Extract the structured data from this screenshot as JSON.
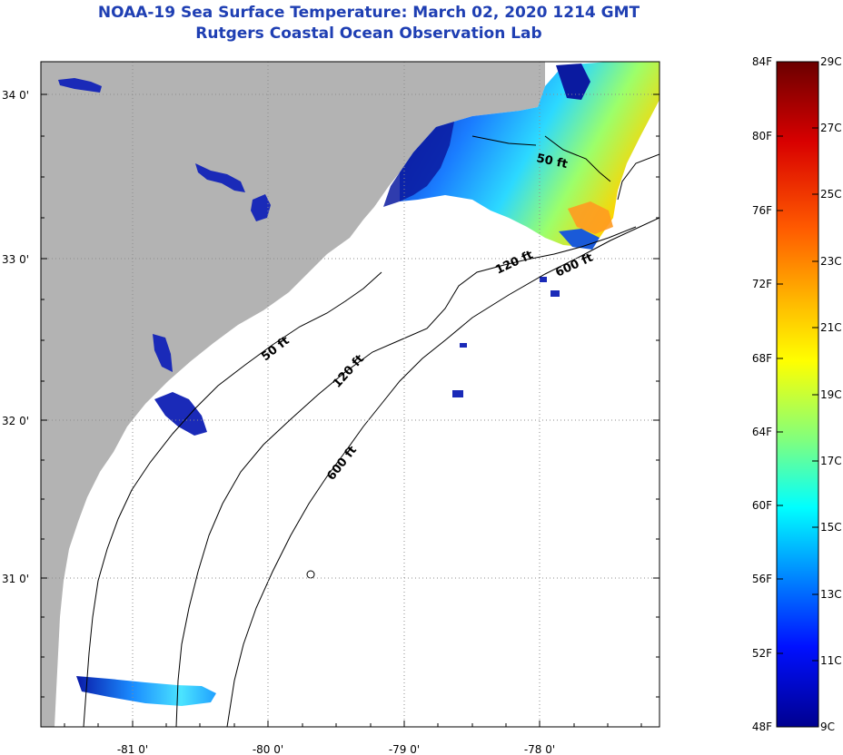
{
  "title": {
    "line1": "NOAA-19 Sea Surface Temperature:  March 02, 2020 1214 GMT",
    "line2": "Rutgers Coastal Ocean Observation Lab"
  },
  "map": {
    "lat_labels": [
      "34 0'",
      "33 0'",
      "32 0'",
      "31 0'"
    ],
    "lon_labels": [
      "-81 0'",
      "-80 0'",
      "-79 0'",
      "-78 0'"
    ],
    "contour_labels": [
      "50 ft",
      "120 ft",
      "600 ft",
      "50 ft",
      "120 ft",
      "600 ft"
    ],
    "colors": {
      "land": "#b3b3b3",
      "ocean_nodata": "#ffffff",
      "grid": "#9a9a9a"
    }
  },
  "colorbar": {
    "fahrenheit": [
      "84F",
      "80F",
      "76F",
      "72F",
      "68F",
      "64F",
      "60F",
      "56F",
      "52F",
      "48F"
    ],
    "celsius": [
      "29C",
      "27C",
      "25C",
      "23C",
      "21C",
      "19C",
      "17C",
      "15C",
      "13C",
      "11C",
      "9C"
    ],
    "colors": [
      "#7f0000",
      "#ff0000",
      "#ff8c00",
      "#ffff00",
      "#7fff7f",
      "#00ffff",
      "#0080ff",
      "#0000ff",
      "#00008f"
    ]
  }
}
